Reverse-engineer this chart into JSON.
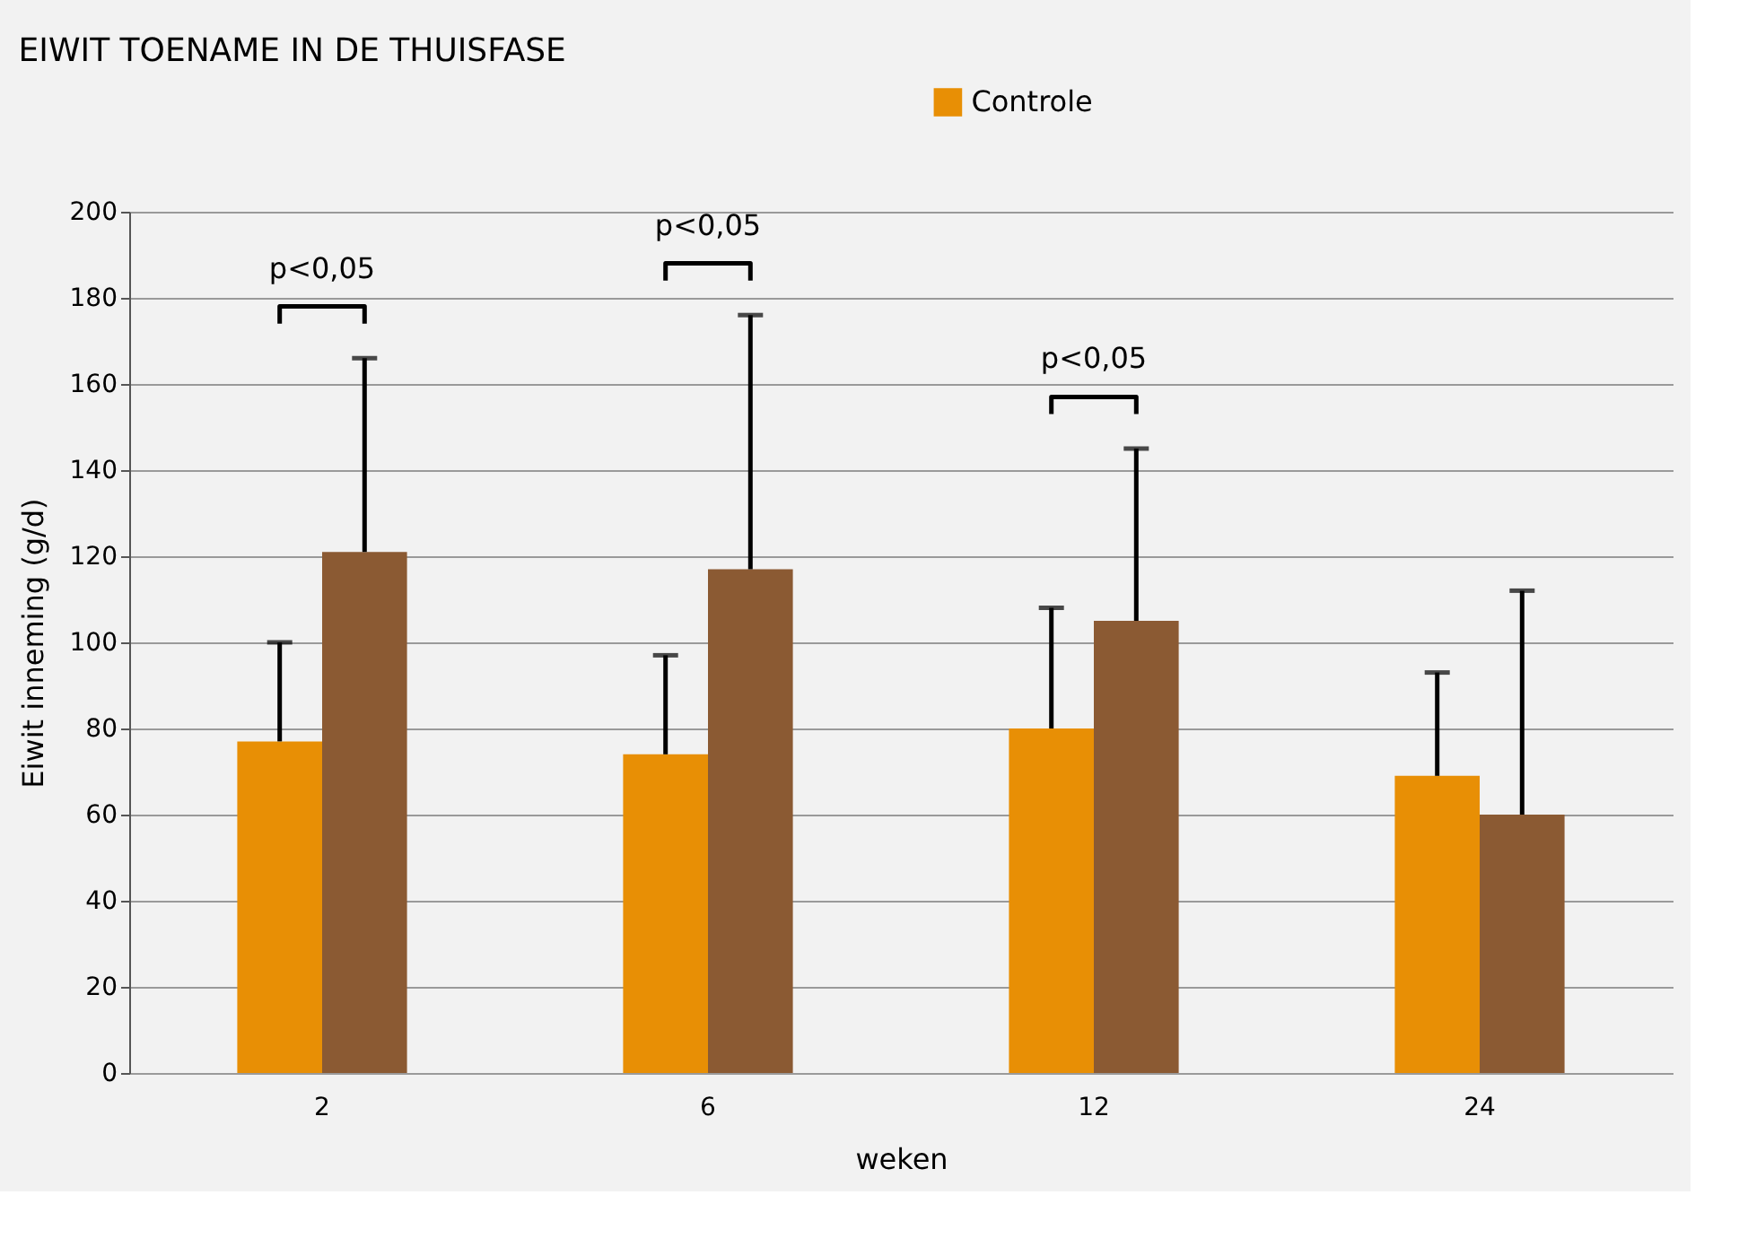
{
  "chart_data": {
    "type": "bar",
    "title": "EIWIT TOENAME IN DE THUISFASE",
    "xlabel": "weken",
    "ylabel": "Eiwit inneming (g/d)",
    "categories": [
      "2",
      "6",
      "12",
      "24"
    ],
    "series": [
      {
        "name": "Controle",
        "color": "#e88f05",
        "values": [
          77,
          74,
          80,
          69
        ],
        "errors": [
          [
            77,
            100
          ],
          [
            74,
            97
          ],
          [
            80,
            108
          ],
          [
            69,
            93
          ]
        ]
      },
      {
        "color": "#8b5a33",
        "values": [
          121,
          117,
          105,
          60
        ],
        "errors": [
          [
            121,
            166
          ],
          [
            117,
            176
          ],
          [
            105,
            145
          ],
          [
            60,
            112
          ]
        ]
      }
    ],
    "ylim": [
      0,
      200
    ],
    "yticks": [
      0,
      20,
      40,
      60,
      80,
      100,
      120,
      140,
      160,
      180,
      200
    ],
    "grid": "y",
    "legend": "top right",
    "annotations": [
      "p<0,05",
      "p<0,05",
      "p<0,05"
    ]
  }
}
